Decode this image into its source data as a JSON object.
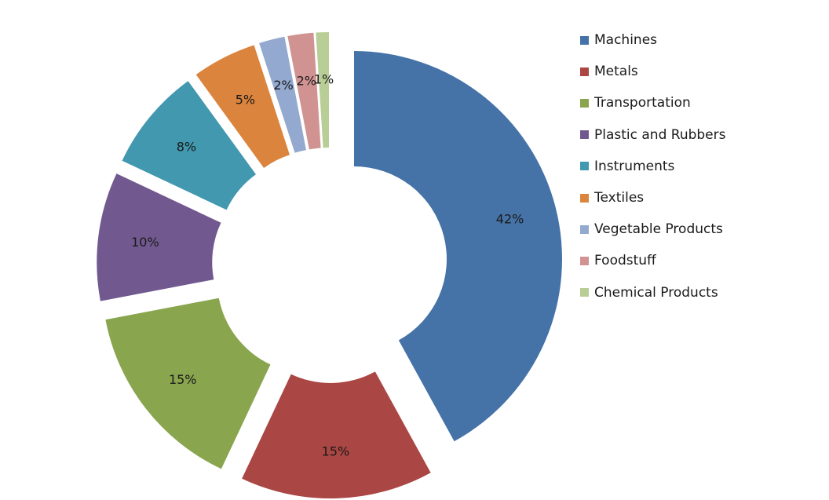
{
  "chart_data": {
    "type": "pie",
    "style": "donut-exploded",
    "categories": [
      "Machines",
      "Metals",
      "Transportation",
      "Plastic and Rubbers",
      "Instruments",
      "Textiles",
      "Vegetable Products",
      "Foodstuff",
      "Chemical Products"
    ],
    "values": [
      42,
      15,
      15,
      10,
      8,
      5,
      2,
      2,
      1
    ],
    "data_labels": [
      "42%",
      "15%",
      "15%",
      "10%",
      "8%",
      "5%",
      "2%",
      "2%",
      "1%"
    ],
    "colors": [
      "#4572A7",
      "#AA4643",
      "#89A54E",
      "#71588F",
      "#4198AF",
      "#DB843D",
      "#93A9CF",
      "#D19392",
      "#B9CD96"
    ],
    "legend_position": "right",
    "title": ""
  }
}
